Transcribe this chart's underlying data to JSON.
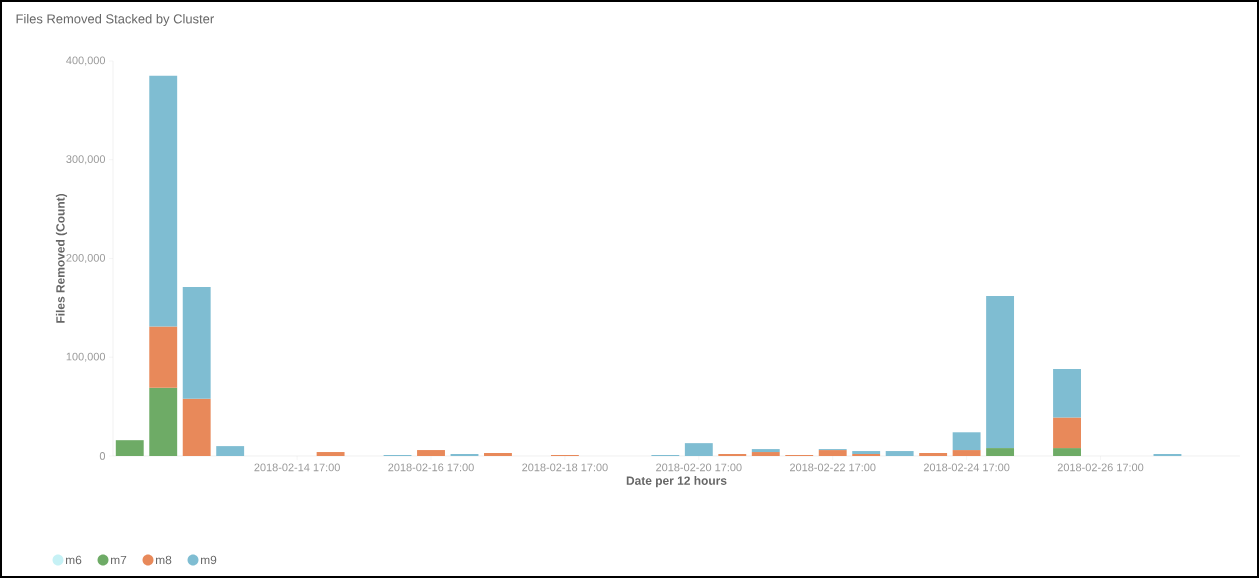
{
  "chart_data": {
    "type": "bar",
    "title": "Files Removed Stacked by Cluster",
    "xlabel": "Date per 12 hours",
    "ylabel": "Files Removed (Count)",
    "stacked": true,
    "legend": "bottom left",
    "x": [
      "2018-02-12T05:00",
      "2018-02-12T17:00",
      "2018-02-13T05:00",
      "2018-02-13T17:00",
      "2018-02-14T05:00",
      "2018-02-14T17:00",
      "2018-02-15T05:00",
      "2018-02-15T17:00",
      "2018-02-16T05:00",
      "2018-02-16T17:00",
      "2018-02-17T05:00",
      "2018-02-17T17:00",
      "2018-02-18T05:00",
      "2018-02-18T17:00",
      "2018-02-19T05:00",
      "2018-02-19T17:00",
      "2018-02-20T05:00",
      "2018-02-20T17:00",
      "2018-02-21T05:00",
      "2018-02-21T17:00",
      "2018-02-22T05:00",
      "2018-02-22T17:00",
      "2018-02-23T05:00",
      "2018-02-23T17:00",
      "2018-02-24T05:00",
      "2018-02-24T17:00",
      "2018-02-25T05:00",
      "2018-02-25T17:00",
      "2018-02-26T05:00",
      "2018-02-26T17:00",
      "2018-02-27T05:00",
      "2018-02-27T17:00"
    ],
    "series": [
      {
        "name": "m6",
        "color": "#c6f1f5",
        "values": [
          0,
          0,
          0,
          0,
          0,
          0,
          0,
          0,
          0,
          0,
          0,
          0,
          0,
          0,
          0,
          0,
          0,
          0,
          0,
          0,
          0,
          0,
          0,
          0,
          0,
          0,
          0,
          0,
          0,
          0,
          0,
          0
        ]
      },
      {
        "name": "m7",
        "color": "#6eab66",
        "values": [
          16000,
          69000,
          0,
          0,
          0,
          0,
          0,
          0,
          0,
          0,
          0,
          0,
          0,
          0,
          0,
          0,
          0,
          0,
          0,
          0,
          0,
          0,
          0,
          0,
          0,
          0,
          8000,
          0,
          8000,
          0,
          0,
          0
        ]
      },
      {
        "name": "m8",
        "color": "#e8895a",
        "values": [
          0,
          62000,
          58000,
          0,
          0,
          0,
          4000,
          0,
          0,
          6000,
          0,
          3000,
          0,
          1000,
          0,
          0,
          0,
          0,
          2000,
          4000,
          1000,
          6000,
          2000,
          0,
          3000,
          6000,
          0,
          0,
          31000,
          0,
          0,
          0
        ]
      },
      {
        "name": "m9",
        "color": "#7fbdd2",
        "values": [
          0,
          254000,
          113000,
          10000,
          0,
          0,
          0,
          0,
          1000,
          0,
          2000,
          0,
          0,
          0,
          0,
          0,
          1000,
          13000,
          0,
          3000,
          0,
          1000,
          3000,
          5000,
          0,
          18000,
          154000,
          0,
          49000,
          0,
          0,
          2000
        ]
      }
    ],
    "xlim": [
      "2018-02-11T23:00",
      "2018-02-28T19:00"
    ],
    "xticks": [
      {
        "value": "2018-02-14T17:00",
        "label": "2018-02-14 17:00"
      },
      {
        "value": "2018-02-16T17:00",
        "label": "2018-02-16 17:00"
      },
      {
        "value": "2018-02-18T17:00",
        "label": "2018-02-18 17:00"
      },
      {
        "value": "2018-02-20T17:00",
        "label": "2018-02-20 17:00"
      },
      {
        "value": "2018-02-22T17:00",
        "label": "2018-02-22 17:00"
      },
      {
        "value": "2018-02-24T17:00",
        "label": "2018-02-24 17:00"
      },
      {
        "value": "2018-02-26T17:00",
        "label": "2018-02-26 17:00"
      }
    ],
    "ylim": [
      0,
      400000
    ],
    "yticks": [
      {
        "value": 0,
        "label": "0"
      },
      {
        "value": 100000,
        "label": "100,000"
      },
      {
        "value": 200000,
        "label": "200,000"
      },
      {
        "value": 300000,
        "label": "300,000"
      },
      {
        "value": 400000,
        "label": "400,000"
      }
    ]
  }
}
